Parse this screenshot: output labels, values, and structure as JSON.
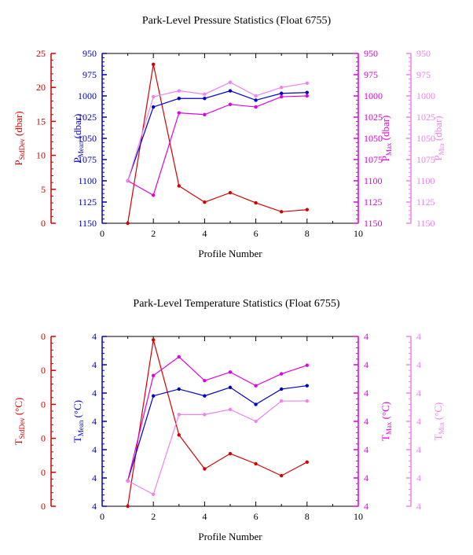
{
  "footer": {
    "stamp": ""
  },
  "chart_data": [
    {
      "type": "line",
      "title": "Park-Level Pressure Statistics (Float 6755)",
      "xlabel": "Profile Number",
      "xlim": [
        0,
        10
      ],
      "xticks": [
        0,
        2,
        4,
        6,
        8,
        10
      ],
      "axes": [
        {
          "key": "std",
          "side": "left",
          "color": "#d40000",
          "label": "P",
          "label_sub": "StdDev",
          "label_unit": " (dbar)",
          "lim": [
            0,
            25
          ],
          "inverted": false,
          "tick_labels": [
            "0",
            "5",
            "10",
            "15",
            "20",
            "25"
          ]
        },
        {
          "key": "mean",
          "side": "left",
          "color": "#0000cc",
          "label": "P",
          "label_sub": "Mean",
          "label_unit": " (dbar)",
          "lim": [
            950,
            1150
          ],
          "inverted": true,
          "tick_labels": [
            "950",
            "975",
            "1000",
            "1025",
            "1050",
            "1075",
            "1100",
            "1125",
            "1150"
          ]
        },
        {
          "key": "max",
          "side": "right",
          "color": "#e000e0",
          "label": "P",
          "label_sub": "Max",
          "label_unit": " (dbar)",
          "lim": [
            950,
            1150
          ],
          "inverted": true,
          "tick_labels": [
            "950",
            "975",
            "1000",
            "1025",
            "1050",
            "1075",
            "1100",
            "1125",
            "1150"
          ]
        },
        {
          "key": "min",
          "side": "right",
          "color": "#ee82ee",
          "label": "P",
          "label_sub": "Min",
          "label_unit": " (dbar)",
          "lim": [
            950,
            1150
          ],
          "inverted": true,
          "tick_labels": [
            "950",
            "975",
            "1000",
            "1025",
            "1050",
            "1075",
            "1100",
            "1125",
            "1150"
          ]
        }
      ],
      "series": [
        {
          "axis": "std",
          "x": [
            1,
            2,
            3,
            4,
            5,
            6,
            7,
            8
          ],
          "values": [
            0,
            23.4,
            5.5,
            3.1,
            4.5,
            3.0,
            1.7,
            2.0
          ]
        },
        {
          "axis": "mean",
          "x": [
            1,
            2,
            3,
            4,
            5,
            6,
            7,
            8
          ],
          "values": [
            1100,
            1013,
            1003,
            1003,
            994,
            1005,
            997,
            996
          ]
        },
        {
          "axis": "max",
          "x": [
            1,
            2,
            3,
            4,
            5,
            6,
            7,
            8
          ],
          "values": [
            1100,
            1117,
            1020,
            1022,
            1010,
            1013,
            1001,
            1000
          ]
        },
        {
          "axis": "min",
          "x": [
            1,
            2,
            3,
            4,
            5,
            6,
            7,
            8
          ],
          "values": [
            1100,
            1001,
            994,
            998,
            984,
            1000,
            990,
            985
          ]
        }
      ]
    },
    {
      "type": "line",
      "title": "Park-Level Temperature Statistics (Float 6755)",
      "xlabel": "Profile Number",
      "xlim": [
        0,
        10
      ],
      "xticks": [
        0,
        2,
        4,
        6,
        8,
        10
      ],
      "axes": [
        {
          "key": "std",
          "side": "left",
          "color": "#d40000",
          "label": "T",
          "label_sub": "StdDev",
          "label_unit": " (°C)",
          "lim": [
            0,
            1
          ],
          "inverted": false,
          "tick_labels": [
            "0",
            "0",
            "0",
            "0",
            "0",
            "0"
          ]
        },
        {
          "key": "mean",
          "side": "left",
          "color": "#0000cc",
          "label": "T",
          "label_sub": "Mean",
          "label_unit": " (°C)",
          "lim": [
            0,
            1
          ],
          "inverted": false,
          "tick_labels": [
            "4",
            "4",
            "4",
            "4",
            "4",
            "4",
            "4"
          ]
        },
        {
          "key": "max",
          "side": "right",
          "color": "#e000e0",
          "label": "T",
          "label_sub": "Max",
          "label_unit": " (°C)",
          "lim": [
            0,
            1
          ],
          "inverted": false,
          "tick_labels": [
            "4",
            "4",
            "4",
            "4",
            "4",
            "4",
            "4"
          ]
        },
        {
          "key": "min",
          "side": "right",
          "color": "#ee82ee",
          "label": "T",
          "label_sub": "Min",
          "label_unit": " (°C)",
          "lim": [
            0,
            1
          ],
          "inverted": false,
          "tick_labels": [
            "4",
            "4",
            "4",
            "4",
            "4",
            "4",
            "4"
          ]
        }
      ],
      "series": [
        {
          "axis": "std",
          "x": [
            1,
            2,
            3,
            4,
            5,
            6,
            7,
            8
          ],
          "values": [
            0,
            0.98,
            0.42,
            0.22,
            0.31,
            0.25,
            0.18,
            0.26
          ]
        },
        {
          "axis": "mean",
          "x": [
            1,
            2,
            3,
            4,
            5,
            6,
            7,
            8
          ],
          "values": [
            0.15,
            0.65,
            0.69,
            0.65,
            0.7,
            0.6,
            0.69,
            0.71
          ]
        },
        {
          "axis": "max",
          "x": [
            1,
            2,
            3,
            4,
            5,
            6,
            7,
            8
          ],
          "values": [
            0.15,
            0.77,
            0.88,
            0.74,
            0.79,
            0.71,
            0.78,
            0.83
          ]
        },
        {
          "axis": "min",
          "x": [
            1,
            2,
            3,
            4,
            5,
            6,
            7,
            8
          ],
          "values": [
            0.15,
            0.07,
            0.54,
            0.54,
            0.57,
            0.5,
            0.62,
            0.62
          ]
        }
      ]
    }
  ]
}
